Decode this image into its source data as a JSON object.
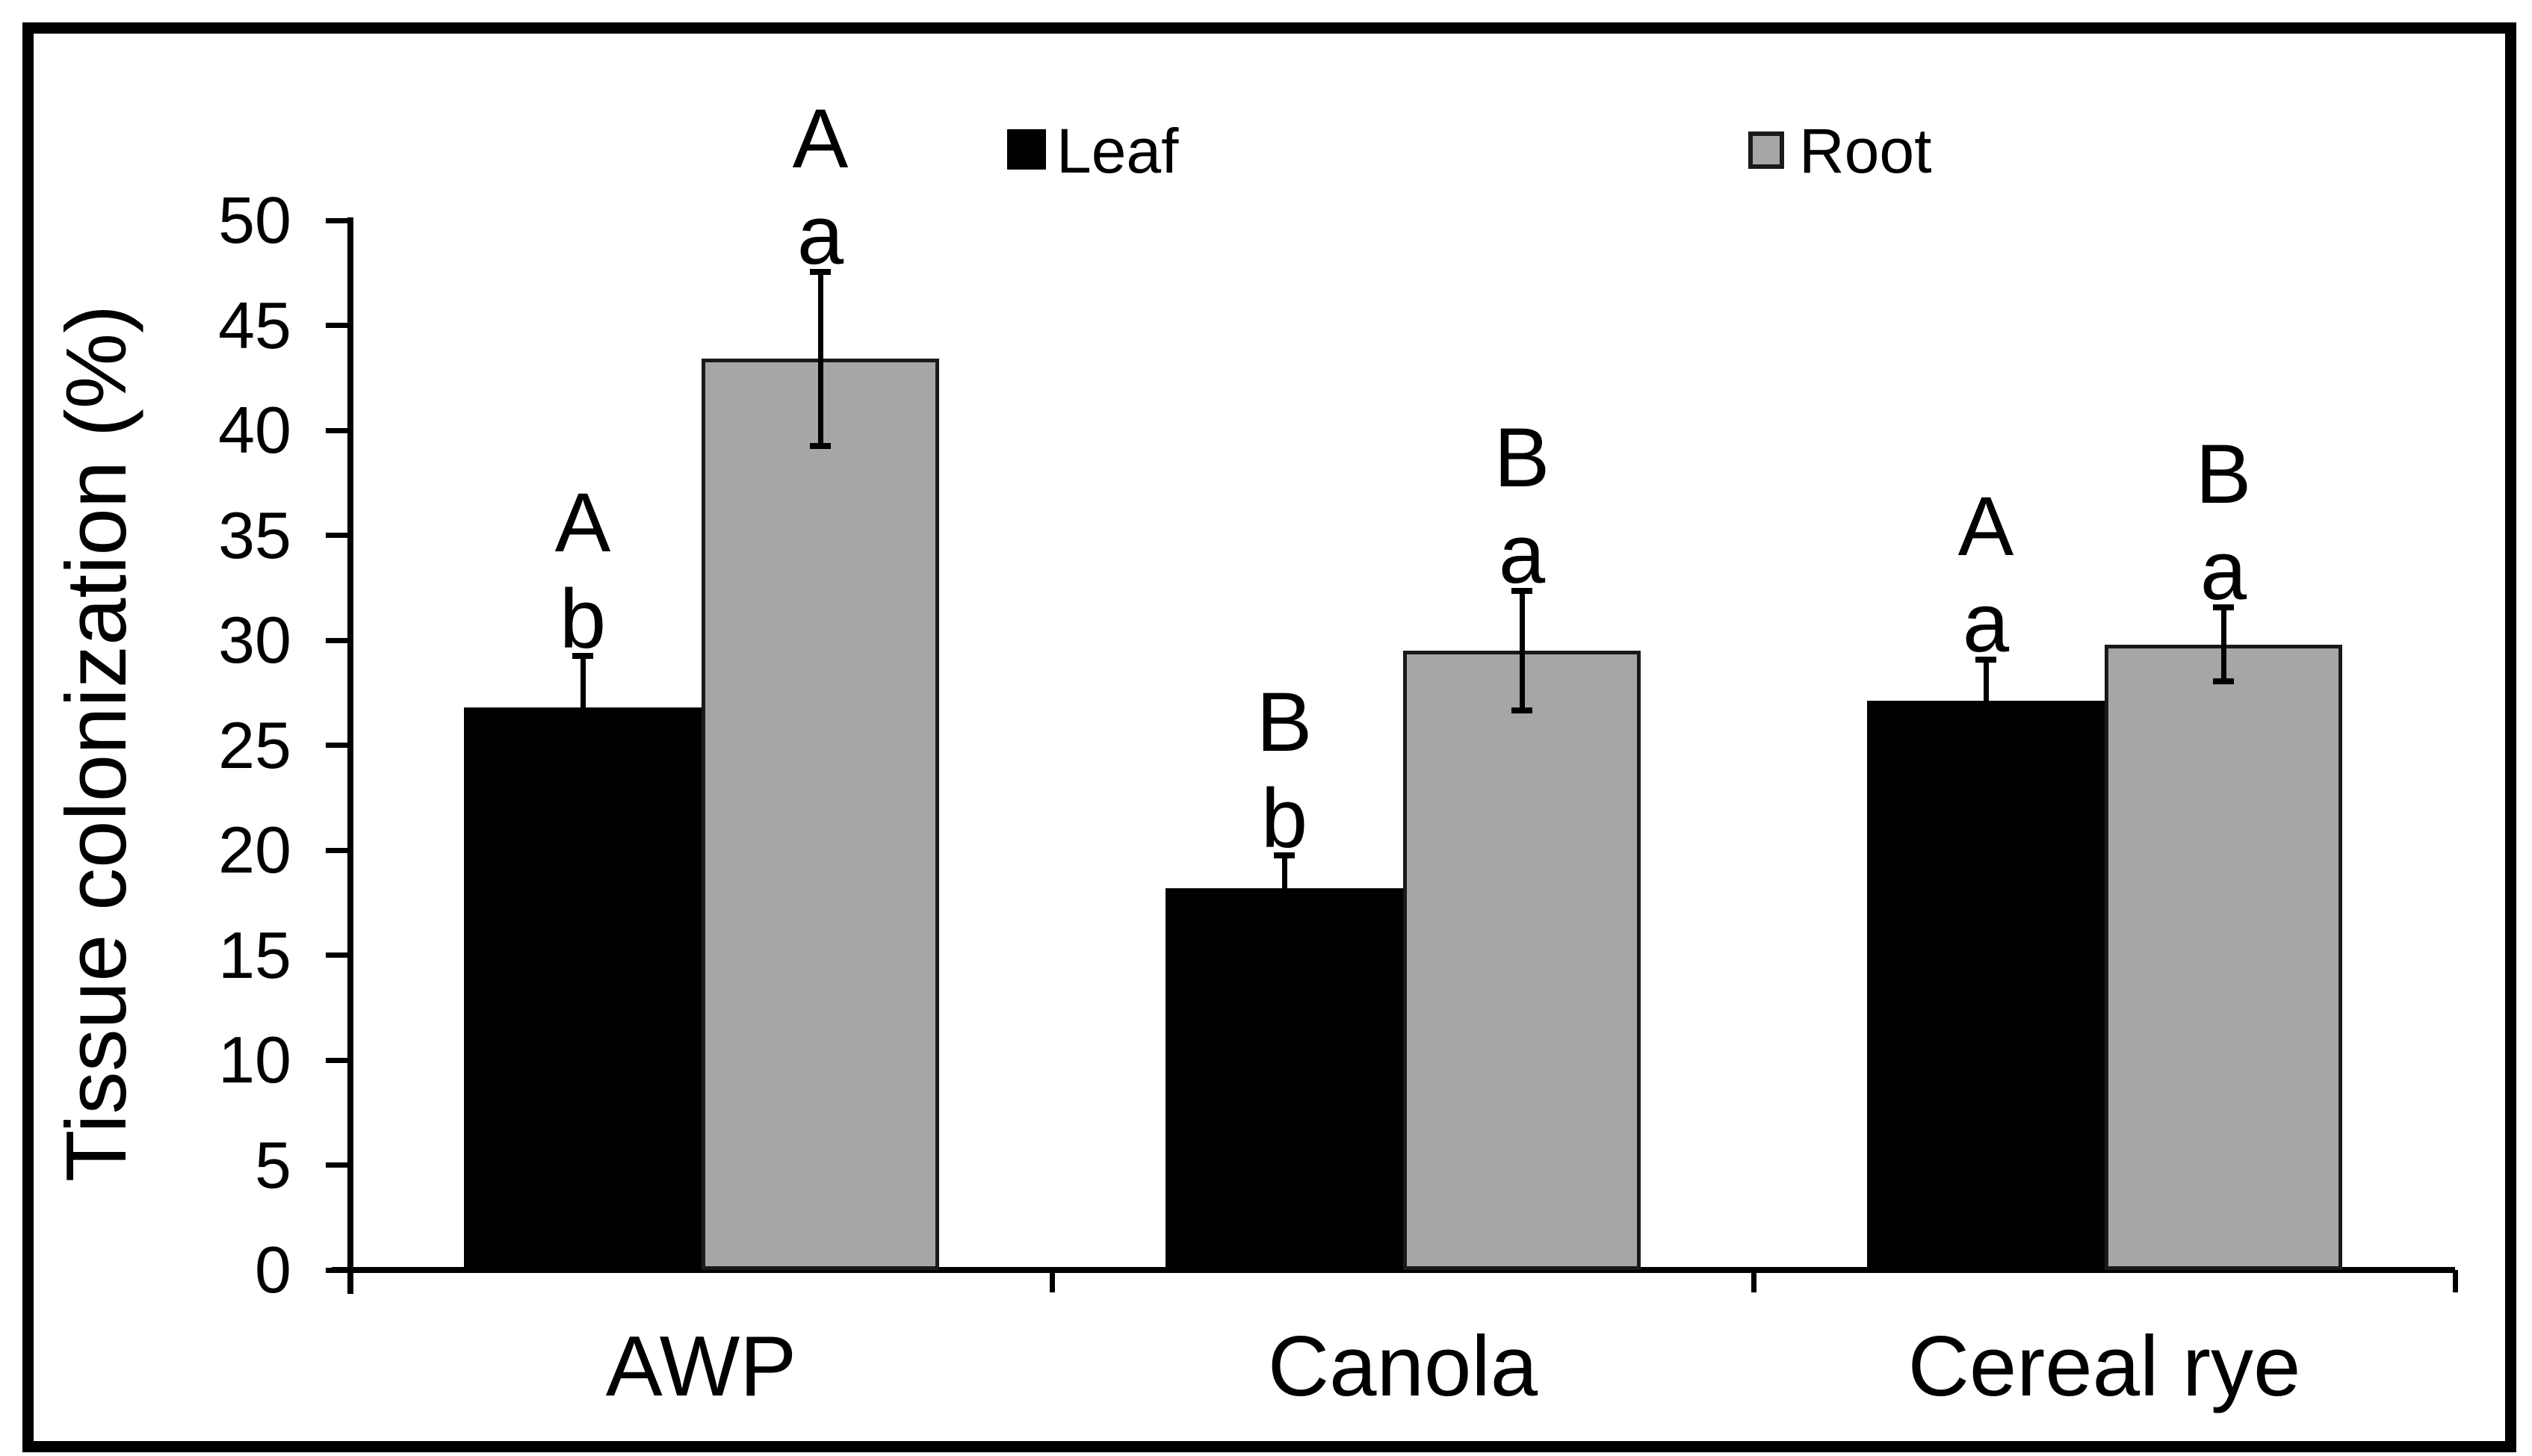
{
  "figure": {
    "background": "#FFFFFF",
    "frame_color": "#000000",
    "axis_color": "#000000",
    "text_color": "#000000"
  },
  "legend": {
    "items": [
      {
        "label": "Leaf",
        "swatch_color": "#000000"
      },
      {
        "label": "Root",
        "swatch_color": "#A6A6A6"
      }
    ]
  },
  "chart_data": {
    "type": "bar",
    "title": "",
    "xlabel": "",
    "ylabel": "Tissue colonization (%)",
    "ylim": [
      0,
      50
    ],
    "ytick_step": 5,
    "ytick_labels": [
      "0",
      "5",
      "10",
      "15",
      "20",
      "25",
      "30",
      "35",
      "40",
      "45",
      "50"
    ],
    "grid": false,
    "legend_position": "inside-top-center",
    "categories": [
      "AWP",
      "Canola",
      "Cereal rye"
    ],
    "series": [
      {
        "name": "Leaf",
        "color": "#000000",
        "values": [
          26.8,
          18.2,
          27.1
        ],
        "error_bars": [
          2.6,
          1.7,
          2.1
        ],
        "significance_letters": [
          {
            "upper": "A",
            "lower": "b"
          },
          {
            "upper": "B",
            "lower": "b"
          },
          {
            "upper": "A",
            "lower": "a"
          }
        ]
      },
      {
        "name": "Root",
        "color": "#A6A6A6",
        "values": [
          43.4,
          29.5,
          29.8
        ],
        "error_bars": [
          4.3,
          3.0,
          1.9
        ],
        "significance_letters": [
          {
            "upper": "A",
            "lower": "a"
          },
          {
            "upper": "B",
            "lower": "a"
          },
          {
            "upper": "B",
            "lower": "a"
          }
        ]
      }
    ]
  }
}
